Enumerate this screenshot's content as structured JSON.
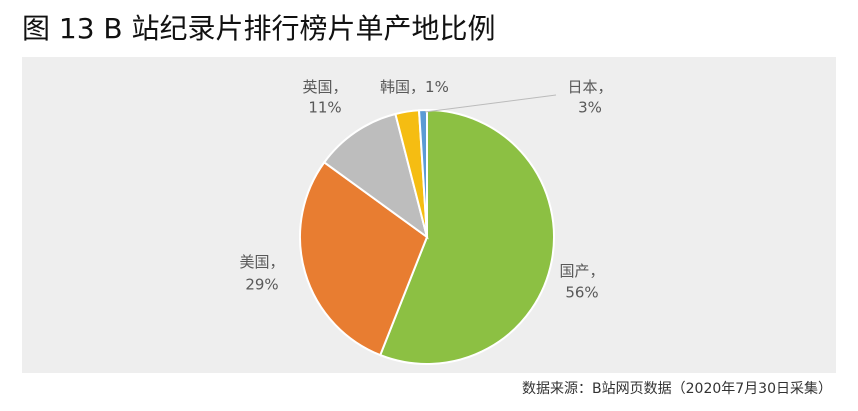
{
  "chart_data": {
    "type": "pie",
    "title": "图 13 B 站纪录片排行榜片单产地比例",
    "categories": [
      "国产",
      "美国",
      "英国",
      "日本",
      "韩国"
    ],
    "values": [
      56,
      29,
      11,
      3,
      1
    ],
    "value_labels": [
      "56%",
      "29%",
      "11%",
      "3%",
      "1%"
    ],
    "label_separator": "，",
    "colors": [
      "#8cc043",
      "#e87d31",
      "#bdbdbd",
      "#f5bd12",
      "#5b9bd5"
    ],
    "source": "数据来源：B站网页数据（2020年7月30日采集）"
  }
}
